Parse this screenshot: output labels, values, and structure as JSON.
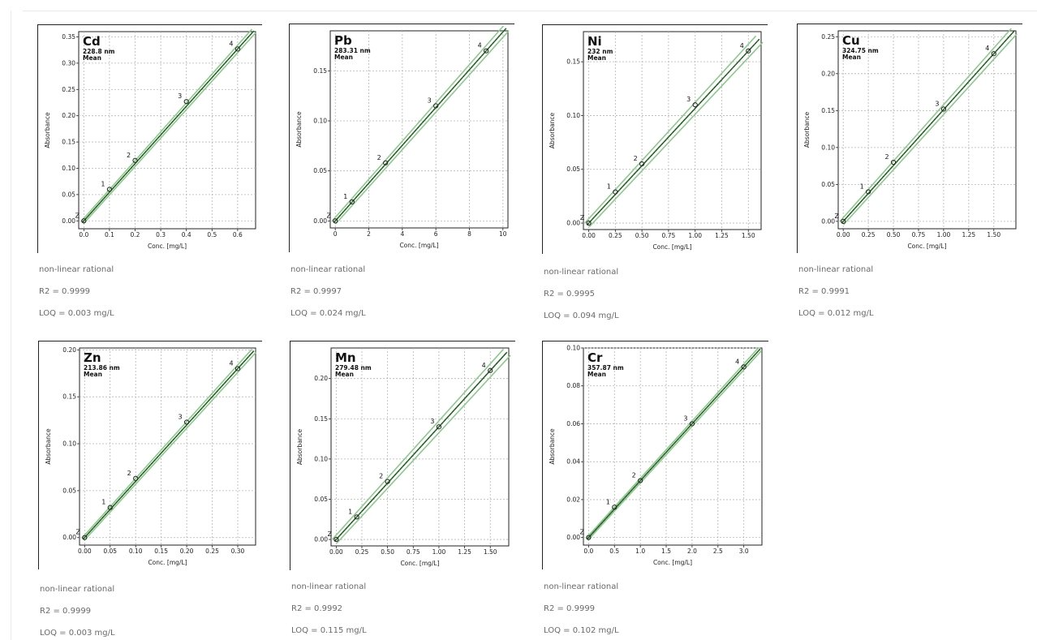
{
  "common": {
    "xlabel": "Conc. [mg/L]",
    "ylabel": "Absorbance",
    "sublabel": "Mean",
    "curve_type": "non-linear rational",
    "colors": {
      "fit": "#2e6e2e",
      "band": "#8cc98c",
      "grid": "#b5b5b5",
      "frame": "#222222"
    }
  },
  "chart_data": [
    {
      "type": "line",
      "title": "Cd",
      "wavelength": "228.8 nm",
      "x": [
        0,
        0.1,
        0.2,
        0.4,
        0.6
      ],
      "y": [
        0.0,
        0.06,
        0.115,
        0.227,
        0.327
      ],
      "point_labels": [
        "Z",
        "1",
        "2",
        "3",
        "4"
      ],
      "xlim": [
        -0.02,
        0.67
      ],
      "ylim": [
        -0.015,
        0.36
      ],
      "xticks": [
        0.0,
        0.1,
        0.2,
        0.3,
        0.4,
        0.5,
        0.6
      ],
      "xtick_labels": [
        "0.0",
        "0.1",
        "0.2",
        "0.3",
        "0.4",
        "0.5",
        "0.6"
      ],
      "yticks": [
        0.0,
        0.05,
        0.1,
        0.15,
        0.2,
        0.25,
        0.3,
        0.35
      ],
      "ytick_labels": [
        "0.00",
        "0.05",
        "0.10",
        "0.15",
        "0.20",
        "0.25",
        "0.30",
        "0.35"
      ],
      "r2": "R2 = 0.9999",
      "loq": "LOQ = 0.003 mg/L"
    },
    {
      "type": "line",
      "title": "Pb",
      "wavelength": "283.31 nm",
      "x": [
        0,
        1,
        3,
        6,
        9
      ],
      "y": [
        0.0,
        0.019,
        0.058,
        0.115,
        0.17
      ],
      "point_labels": [
        "Z",
        "1",
        "2",
        "3",
        "4"
      ],
      "xlim": [
        -0.3,
        10.3
      ],
      "ylim": [
        -0.007,
        0.19
      ],
      "xticks": [
        0,
        2,
        4,
        6,
        8,
        10
      ],
      "xtick_labels": [
        "0",
        "2",
        "4",
        "6",
        "8",
        "10"
      ],
      "yticks": [
        0.0,
        0.05,
        0.1,
        0.15
      ],
      "ytick_labels": [
        "0.00",
        "0.05",
        "0.10",
        "0.15"
      ],
      "r2": "R2 = 0.9997",
      "loq": "LOQ = 0.024 mg/L"
    },
    {
      "type": "line",
      "title": "Ni",
      "wavelength": "232 nm",
      "x": [
        0,
        0.25,
        0.5,
        1.0,
        1.5
      ],
      "y": [
        0.0,
        0.029,
        0.055,
        0.11,
        0.16
      ],
      "point_labels": [
        "Z",
        "1",
        "2",
        "3",
        "4"
      ],
      "xlim": [
        -0.05,
        1.62
      ],
      "ylim": [
        -0.006,
        0.178
      ],
      "xticks": [
        0.0,
        0.25,
        0.5,
        0.75,
        1.0,
        1.25,
        1.5
      ],
      "xtick_labels": [
        "0.00",
        "0.25",
        "0.50",
        "0.75",
        "1.00",
        "1.25",
        "1.50"
      ],
      "yticks": [
        0.0,
        0.05,
        0.1,
        0.15
      ],
      "ytick_labels": [
        "0.00",
        "0.05",
        "0.10",
        "0.15"
      ],
      "r2": "R2 = 0.9995",
      "loq": "LOQ = 0.094 mg/L"
    },
    {
      "type": "line",
      "title": "Cu",
      "wavelength": "324.75 nm",
      "x": [
        0,
        0.25,
        0.5,
        1.0,
        1.5
      ],
      "y": [
        0.0,
        0.04,
        0.08,
        0.152,
        0.227
      ],
      "point_labels": [
        "Z",
        "1",
        "2",
        "3",
        "4"
      ],
      "xlim": [
        -0.05,
        1.72
      ],
      "ylim": [
        -0.01,
        0.258
      ],
      "xticks": [
        0.0,
        0.25,
        0.5,
        0.75,
        1.0,
        1.25,
        1.5
      ],
      "xtick_labels": [
        "0.00",
        "0.25",
        "0.50",
        "0.75",
        "1.00",
        "1.25",
        "1.50"
      ],
      "yticks": [
        0.0,
        0.05,
        0.1,
        0.15,
        0.2,
        0.25
      ],
      "ytick_labels": [
        "0.00",
        "0.05",
        "0.10",
        "0.15",
        "0.20",
        "0.25"
      ],
      "r2": "R2 = 0.9991",
      "loq": "LOQ = 0.012 mg/L"
    },
    {
      "type": "line",
      "title": "Zn",
      "wavelength": "213.86 nm",
      "x": [
        0,
        0.05,
        0.1,
        0.2,
        0.3
      ],
      "y": [
        0.0,
        0.032,
        0.063,
        0.123,
        0.18
      ],
      "point_labels": [
        "Z",
        "1",
        "2",
        "3",
        "4"
      ],
      "xlim": [
        -0.01,
        0.335
      ],
      "ylim": [
        -0.008,
        0.202
      ],
      "xticks": [
        0.0,
        0.05,
        0.1,
        0.15,
        0.2,
        0.25,
        0.3
      ],
      "xtick_labels": [
        "0.00",
        "0.05",
        "0.10",
        "0.15",
        "0.20",
        "0.25",
        "0.30"
      ],
      "yticks": [
        0.0,
        0.05,
        0.1,
        0.15,
        0.2
      ],
      "ytick_labels": [
        "0.00",
        "0.05",
        "0.10",
        "0.15",
        "0.20"
      ],
      "r2": "R2 = 0.9999",
      "loq": "LOQ = 0.003 mg/L"
    },
    {
      "type": "line",
      "title": "Mn",
      "wavelength": "279.48 nm",
      "x": [
        0,
        0.2,
        0.5,
        1.0,
        1.5
      ],
      "y": [
        0.0,
        0.028,
        0.072,
        0.14,
        0.21
      ],
      "point_labels": [
        "Z",
        "1",
        "2",
        "3",
        "4"
      ],
      "xlim": [
        -0.05,
        1.68
      ],
      "ylim": [
        -0.008,
        0.238
      ],
      "xticks": [
        0.0,
        0.25,
        0.5,
        0.75,
        1.0,
        1.25,
        1.5
      ],
      "xtick_labels": [
        "0.00",
        "0.25",
        "0.50",
        "0.75",
        "1.00",
        "1.25",
        "1.50"
      ],
      "yticks": [
        0.0,
        0.05,
        0.1,
        0.15,
        0.2
      ],
      "ytick_labels": [
        "0.00",
        "0.05",
        "0.10",
        "0.15",
        "0.20"
      ],
      "r2": "R2 = 0.9992",
      "loq": "LOQ = 0.115 mg/L"
    },
    {
      "type": "line",
      "title": "Cr",
      "wavelength": "357.87 nm",
      "x": [
        0,
        0.5,
        1.0,
        2.0,
        3.0
      ],
      "y": [
        0.0,
        0.016,
        0.03,
        0.06,
        0.09
      ],
      "point_labels": [
        "Z",
        "1",
        "2",
        "3",
        "4"
      ],
      "xlim": [
        -0.1,
        3.35
      ],
      "ylim": [
        -0.004,
        0.1
      ],
      "xticks": [
        0.0,
        0.5,
        1.0,
        1.5,
        2.0,
        2.5,
        3.0
      ],
      "xtick_labels": [
        "0.0",
        "0.5",
        "1.0",
        "1.5",
        "2.0",
        "2.5",
        "3.0"
      ],
      "yticks": [
        0.0,
        0.02,
        0.04,
        0.06,
        0.08,
        0.1
      ],
      "ytick_labels": [
        "0.00",
        "0.02",
        "0.04",
        "0.06",
        "0.08",
        "0.10"
      ],
      "r2": "R2 = 0.9999",
      "loq": "LOQ = 0.102 mg/L"
    }
  ]
}
